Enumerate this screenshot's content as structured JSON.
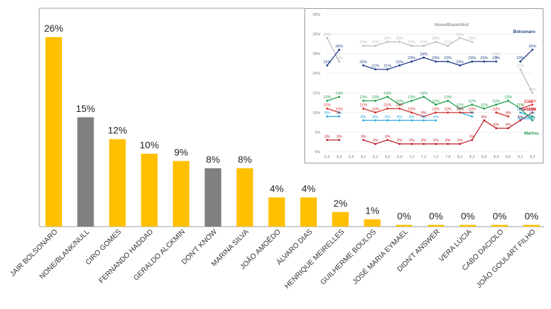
{
  "chart_data": [
    {
      "type": "bar",
      "categories": [
        "JAIR BOLSONARO",
        "NONE/BLANK/NULL",
        "CIRO GOMES",
        "FERNANDO HADDAD",
        "GERALDO ALCKMIN",
        "DON'T KNOW",
        "MARINA SILVA",
        "JOÃO AMOÊDO",
        "ÁLVARO DIAS",
        "HENRIQUE MEIRELLES",
        "GUILHERME BOULOS",
        "JOSÉ MARIA EYMAEL",
        "DIDN'T ANSWER",
        "VERA LÚCIA",
        "CABO DACIOLO",
        "JOÃO GOULART FILHO"
      ],
      "values": [
        26,
        15,
        12,
        10,
        9,
        8,
        8,
        4,
        4,
        2,
        1,
        0,
        0,
        0,
        0,
        0
      ],
      "value_labels": [
        "26%",
        "15%",
        "12%",
        "10%",
        "9%",
        "8%",
        "8%",
        "4%",
        "4%",
        "2%",
        "1%",
        "0%",
        "0%",
        "0%",
        "0%",
        "0%"
      ],
      "bar_colors": [
        "#FFC000",
        "#808080",
        "#FFC000",
        "#FFC000",
        "#FFC000",
        "#808080",
        "#FFC000",
        "#FFC000",
        "#FFC000",
        "#FFC000",
        "#FFC000",
        "#FFC000",
        "#FFC000",
        "#FFC000",
        "#FFC000",
        "#FFC000"
      ],
      "ylim": [
        0,
        28
      ]
    },
    {
      "type": "line",
      "x": [
        "5,3",
        "5,4",
        "5,5",
        "6,1",
        "6,2",
        "6,3",
        "6,4",
        "7,1",
        "7,2",
        "7,3",
        "7,4",
        "8,1",
        "8,2",
        "8,3",
        "8,4",
        "8,5",
        "9,1",
        "9,2"
      ],
      "yticks": [
        "0%",
        "5%",
        "10%",
        "15%",
        "20%",
        "25%",
        "30%",
        "35%"
      ],
      "ylim": [
        0,
        35
      ],
      "series": [
        {
          "name": "None/Blank/Null",
          "color": "#BBBBBB",
          "values": [
            29,
            23,
            null,
            27,
            27,
            28,
            28,
            27,
            27,
            28,
            27,
            29,
            28,
            null,
            24,
            null,
            21,
            15
          ]
        },
        {
          "name": "Bolsonaro",
          "color": "#1F3C88",
          "values": [
            22,
            26,
            null,
            22,
            21,
            21,
            22,
            23,
            24,
            23,
            23,
            22,
            23,
            23,
            23,
            null,
            23,
            26
          ]
        },
        {
          "name": "Ciro",
          "color": "#E03030",
          "values": [
            null,
            null,
            null,
            null,
            null,
            null,
            null,
            null,
            null,
            null,
            null,
            null,
            null,
            null,
            null,
            null,
            11,
            12
          ]
        },
        {
          "name": "Haddad",
          "color": "#C0202A",
          "values": [
            3,
            3,
            null,
            3,
            2,
            3,
            2,
            2,
            2,
            2,
            2,
            2,
            3,
            8,
            6,
            6,
            8,
            10
          ]
        },
        {
          "name": "Alckmin",
          "color": "#2BA8E0",
          "values": [
            9,
            9,
            null,
            8,
            8,
            8,
            8,
            8,
            8,
            8,
            null,
            10,
            9,
            null,
            null,
            null,
            10,
            9
          ]
        },
        {
          "name": "Marina",
          "color": "#1E9E4A",
          "values": [
            13,
            14,
            null,
            13,
            13,
            14,
            12,
            13,
            14,
            12,
            13,
            11,
            12,
            11,
            12,
            13,
            11,
            8
          ]
        },
        {
          "name": "",
          "color": "#D42A2A",
          "values": [
            11,
            10,
            null,
            11,
            10,
            11,
            11,
            10,
            9,
            10,
            10,
            10,
            10,
            null,
            10,
            9,
            null,
            10
          ]
        }
      ]
    }
  ]
}
